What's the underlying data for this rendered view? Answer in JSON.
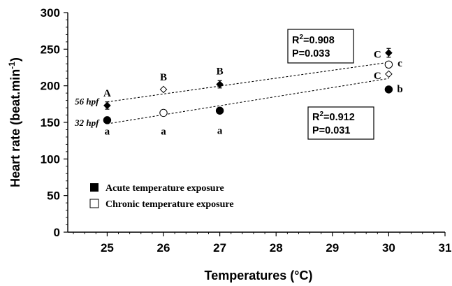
{
  "chart_data": {
    "type": "scatter",
    "xlabel": "Temperatures (°C)",
    "ylabel": "Heart rate (beat.min",
    "ylabel_sup": "-1",
    "ylabel_close": ")",
    "xlim": [
      24.3,
      31
    ],
    "ylim": [
      0,
      300
    ],
    "x_ticks": [
      25,
      26,
      27,
      28,
      29,
      30,
      31
    ],
    "y_ticks": [
      0,
      50,
      100,
      150,
      200,
      250,
      300
    ],
    "grid": false,
    "legend_position": "bottom-left",
    "series": [
      {
        "name": "Acute temperature exposure",
        "marker": "filled",
        "points": [
          {
            "x": 25,
            "y": 173,
            "err": 5,
            "shape": "diamond"
          },
          {
            "x": 27,
            "y": 202,
            "err": 5,
            "shape": "diamond"
          },
          {
            "x": 30,
            "y": 245,
            "err": 6,
            "shape": "diamond"
          },
          {
            "x": 25,
            "y": 153,
            "err": 0,
            "shape": "circle"
          },
          {
            "x": 27,
            "y": 166,
            "err": 0,
            "shape": "circle"
          },
          {
            "x": 30,
            "y": 195,
            "err": 3,
            "shape": "circle"
          }
        ]
      },
      {
        "name": "Chronic temperature exposure",
        "marker": "open",
        "points": [
          {
            "x": 26,
            "y": 195,
            "err": 0,
            "shape": "diamond"
          },
          {
            "x": 30,
            "y": 216,
            "err": 0,
            "shape": "diamond"
          },
          {
            "x": 26,
            "y": 163,
            "err": 0,
            "shape": "circle"
          },
          {
            "x": 30,
            "y": 229,
            "err": 0,
            "shape": "circle"
          }
        ]
      }
    ],
    "trendlines": [
      {
        "x": [
          25,
          30
        ],
        "y": [
          178,
          232
        ]
      },
      {
        "x": [
          25,
          30
        ],
        "y": [
          148,
          210
        ]
      }
    ],
    "group_labels": [
      {
        "text": "56 hpf",
        "x": 25,
        "y": 178
      },
      {
        "text": "32 hpf",
        "x": 25,
        "y": 149
      }
    ],
    "significance_letters": [
      {
        "text": "A",
        "x": 25,
        "y": 190
      },
      {
        "text": "B",
        "x": 26,
        "y": 212
      },
      {
        "text": "B",
        "x": 27,
        "y": 220
      },
      {
        "text": "C",
        "x": 29.8,
        "y": 243
      },
      {
        "text": "C",
        "x": 29.8,
        "y": 214
      },
      {
        "text": "c",
        "x": 30.2,
        "y": 231
      },
      {
        "text": "b",
        "x": 30.2,
        "y": 196
      },
      {
        "text": "a",
        "x": 25,
        "y": 138
      },
      {
        "text": "a",
        "x": 26,
        "y": 138
      },
      {
        "text": "a",
        "x": 27,
        "y": 139
      }
    ],
    "stat_boxes": [
      {
        "r_label": "R",
        "r_sup": "2",
        "r_value": "=0.908",
        "p": "P=0.033",
        "position": "upper"
      },
      {
        "r_label": "R",
        "r_sup": "2",
        "r_value": "=0.912",
        "p": "P=0.031",
        "position": "lower"
      }
    ]
  }
}
